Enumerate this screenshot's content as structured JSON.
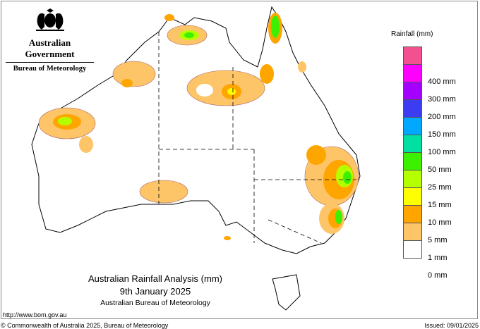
{
  "header": {
    "org": "Australian Government",
    "agency": "Bureau of Meteorology",
    "logo_icon": "coat-of-arms-icon"
  },
  "map": {
    "title": "Australian Rainfall Analysis (mm)",
    "date": "9th January 2025",
    "source": "Australian Bureau of Meteorology"
  },
  "legend": {
    "title": "Rainfall (mm)",
    "bins": [
      {
        "color": "#f2508f"
      },
      {
        "color": "#ff00ff",
        "label": "400 mm"
      },
      {
        "color": "#a400ff",
        "label": "300 mm"
      },
      {
        "color": "#3c3cf0",
        "label": "200 mm"
      },
      {
        "color": "#00a8ff",
        "label": "150 mm"
      },
      {
        "color": "#00e0a0",
        "label": "100 mm"
      },
      {
        "color": "#3cf000",
        "label": "50 mm"
      },
      {
        "color": "#b4ff00",
        "label": "25 mm"
      },
      {
        "color": "#ffff00",
        "label": "15 mm"
      },
      {
        "color": "#ffa500",
        "label": "10 mm"
      },
      {
        "color": "#fdc468",
        "label": "5 mm"
      },
      {
        "color": "#ffffff",
        "label": "1 mm"
      }
    ],
    "bottom_label": "0 mm"
  },
  "footer": {
    "url": "http://www.bom.gov.au",
    "copyright": "© Commonwealth of Australia 2025, Bureau of Meteorology",
    "issued": "Issued: 09/01/2025"
  }
}
